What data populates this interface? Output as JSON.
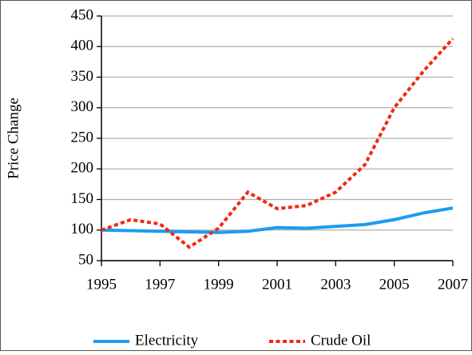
{
  "chart_data": {
    "type": "line",
    "y_label": "Price Change",
    "x": [
      1995,
      1996,
      1997,
      1998,
      1999,
      2000,
      2001,
      2002,
      2003,
      2004,
      2005,
      2006,
      2007
    ],
    "series": [
      {
        "name": "Electricity",
        "color": "#1e9bf0",
        "dash": "solid",
        "values": [
          100,
          99,
          98,
          97,
          96,
          98,
          104,
          103,
          106,
          109,
          117,
          128,
          136
        ]
      },
      {
        "name": "Crude Oil",
        "color": "#f02a10",
        "dash": "dotted",
        "values": [
          100,
          117,
          110,
          72,
          103,
          162,
          135,
          140,
          162,
          207,
          300,
          360,
          413
        ]
      }
    ],
    "xlim": [
      1995,
      2007
    ],
    "xticks": [
      1995,
      1997,
      1999,
      2001,
      2003,
      2005,
      2007
    ],
    "ylim": [
      50,
      450
    ],
    "yticks": [
      50,
      100,
      150,
      200,
      250,
      300,
      350,
      400,
      450
    ],
    "grid": true,
    "legend": "bottom"
  }
}
